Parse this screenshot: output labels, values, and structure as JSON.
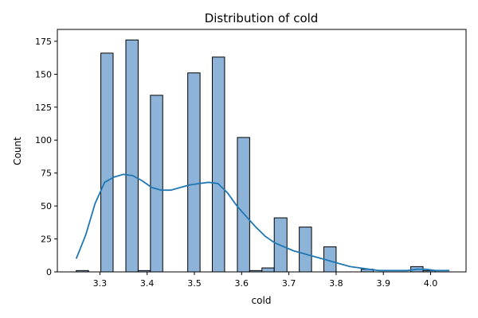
{
  "chart_data": {
    "type": "bar",
    "subtype": "histogram-with-kde",
    "title": "Distribution of cold",
    "xlabel": "cold",
    "ylabel": "Count",
    "xlim": [
      3.21,
      4.075
    ],
    "ylim": [
      0,
      184
    ],
    "x_ticks": [
      3.3,
      3.4,
      3.5,
      3.6,
      3.7,
      3.8,
      3.9,
      4.0
    ],
    "x_tick_labels": [
      "3.3",
      "3.4",
      "3.5",
      "3.6",
      "3.7",
      "3.8",
      "3.9",
      "4.0"
    ],
    "y_ticks": [
      0,
      25,
      50,
      75,
      100,
      125,
      150,
      175
    ],
    "y_tick_labels": [
      "0",
      "25",
      "50",
      "75",
      "100",
      "125",
      "150",
      "175"
    ],
    "grid": false,
    "legend": "none",
    "bar_fill_color": "#8db4d8",
    "bar_edge_color": "#000000",
    "kde_color": "#1f77b4",
    "bins": [
      {
        "x0": 3.25,
        "x1": 3.276,
        "value": 1
      },
      {
        "x0": 3.276,
        "x1": 3.302,
        "value": 0
      },
      {
        "x0": 3.302,
        "x1": 3.328,
        "value": 166
      },
      {
        "x0": 3.328,
        "x1": 3.355,
        "value": 0
      },
      {
        "x0": 3.355,
        "x1": 3.381,
        "value": 176
      },
      {
        "x0": 3.381,
        "x1": 3.407,
        "value": 1
      },
      {
        "x0": 3.407,
        "x1": 3.433,
        "value": 134
      },
      {
        "x0": 3.433,
        "x1": 3.46,
        "value": 0
      },
      {
        "x0": 3.46,
        "x1": 3.486,
        "value": 0
      },
      {
        "x0": 3.486,
        "x1": 3.512,
        "value": 151
      },
      {
        "x0": 3.512,
        "x1": 3.538,
        "value": 0
      },
      {
        "x0": 3.538,
        "x1": 3.564,
        "value": 163
      },
      {
        "x0": 3.564,
        "x1": 3.591,
        "value": 0
      },
      {
        "x0": 3.591,
        "x1": 3.617,
        "value": 102
      },
      {
        "x0": 3.617,
        "x1": 3.643,
        "value": 1
      },
      {
        "x0": 3.643,
        "x1": 3.669,
        "value": 3
      },
      {
        "x0": 3.669,
        "x1": 3.696,
        "value": 41
      },
      {
        "x0": 3.696,
        "x1": 3.722,
        "value": 0
      },
      {
        "x0": 3.722,
        "x1": 3.748,
        "value": 34
      },
      {
        "x0": 3.748,
        "x1": 3.774,
        "value": 0
      },
      {
        "x0": 3.774,
        "x1": 3.8,
        "value": 19
      },
      {
        "x0": 3.8,
        "x1": 3.827,
        "value": 0
      },
      {
        "x0": 3.827,
        "x1": 3.853,
        "value": 0
      },
      {
        "x0": 3.853,
        "x1": 3.879,
        "value": 2
      },
      {
        "x0": 3.879,
        "x1": 3.905,
        "value": 0
      },
      {
        "x0": 3.905,
        "x1": 3.932,
        "value": 0
      },
      {
        "x0": 3.932,
        "x1": 3.958,
        "value": 0
      },
      {
        "x0": 3.958,
        "x1": 3.984,
        "value": 4
      },
      {
        "x0": 3.984,
        "x1": 4.01,
        "value": 1
      }
    ],
    "kde": {
      "x": [
        3.25,
        3.27,
        3.29,
        3.31,
        3.33,
        3.35,
        3.37,
        3.39,
        3.41,
        3.43,
        3.45,
        3.47,
        3.49,
        3.51,
        3.53,
        3.55,
        3.57,
        3.59,
        3.61,
        3.63,
        3.65,
        3.67,
        3.69,
        3.71,
        3.73,
        3.75,
        3.77,
        3.79,
        3.81,
        3.83,
        3.85,
        3.87,
        3.89,
        3.91,
        3.93,
        3.95,
        3.97,
        3.99,
        4.01,
        4.04
      ],
      "y": [
        10,
        28,
        52,
        68,
        72,
        74,
        73,
        69,
        64,
        62,
        62,
        64,
        66,
        67,
        68,
        67,
        60,
        50,
        42,
        34,
        27,
        22,
        19,
        16,
        14,
        12,
        10,
        8,
        6,
        4,
        3,
        2,
        1,
        1,
        1,
        1,
        2,
        2,
        1,
        1
      ]
    }
  }
}
